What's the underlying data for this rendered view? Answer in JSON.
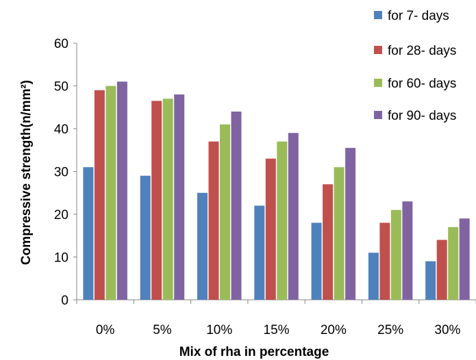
{
  "chart_data": {
    "type": "bar",
    "title": "",
    "xlabel": "Mix of rha in percentage",
    "ylabel": "Compressive strength(n/mm²)",
    "ylim": [
      0,
      60
    ],
    "yticks": [
      "0",
      "10",
      "20",
      "30",
      "40",
      "50",
      "60"
    ],
    "grid": false,
    "legend_position": "top-right",
    "categories": [
      "0%",
      "5%",
      "10%",
      "15%",
      "20%",
      "25%",
      "30%"
    ],
    "series": [
      {
        "name": "for 7- days",
        "color": "#4F81BD",
        "values": [
          31,
          29,
          25,
          22,
          18,
          11,
          9
        ]
      },
      {
        "name": "for 28- days",
        "color": "#C0504D",
        "values": [
          49,
          46.5,
          37,
          33,
          27,
          18,
          14
        ]
      },
      {
        "name": "for 60- days",
        "color": "#9BBB59",
        "values": [
          50,
          47,
          41,
          37,
          31,
          21,
          17
        ]
      },
      {
        "name": "for 90- days",
        "color": "#8064A2",
        "values": [
          51,
          48,
          44,
          39,
          35.5,
          23,
          19
        ]
      }
    ]
  }
}
